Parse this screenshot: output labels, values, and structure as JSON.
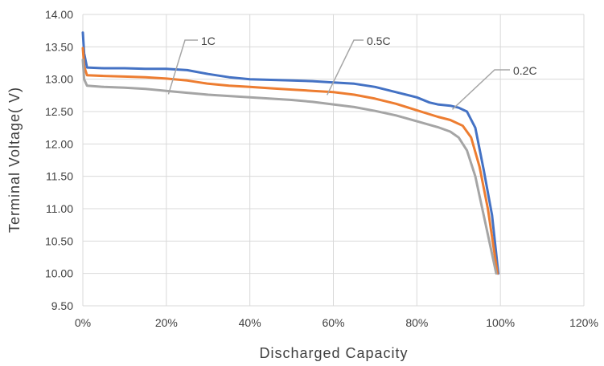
{
  "chart_data": {
    "type": "line",
    "title": "",
    "xlabel": "Discharged Capacity",
    "ylabel": "Terminal Voltage( V)",
    "xlim": [
      0,
      120
    ],
    "ylim": [
      9.5,
      14.0
    ],
    "x_ticks": [
      "0%",
      "20%",
      "40%",
      "60%",
      "80%",
      "100%",
      "120%"
    ],
    "y_ticks": [
      "9.50",
      "10.00",
      "10.50",
      "11.00",
      "11.50",
      "12.00",
      "12.50",
      "13.00",
      "13.50",
      "14.00"
    ],
    "grid": true,
    "legend": "none",
    "series": [
      {
        "name": "0.2C",
        "color": "#4472c4",
        "points": [
          [
            0,
            13.72
          ],
          [
            0.3,
            13.4
          ],
          [
            1,
            13.18
          ],
          [
            5,
            13.17
          ],
          [
            10,
            13.17
          ],
          [
            15,
            13.16
          ],
          [
            20,
            13.16
          ],
          [
            25,
            13.14
          ],
          [
            30,
            13.08
          ],
          [
            35,
            13.03
          ],
          [
            40,
            13.0
          ],
          [
            45,
            12.99
          ],
          [
            50,
            12.98
          ],
          [
            55,
            12.97
          ],
          [
            60,
            12.95
          ],
          [
            65,
            12.93
          ],
          [
            70,
            12.88
          ],
          [
            75,
            12.8
          ],
          [
            80,
            12.72
          ],
          [
            83,
            12.64
          ],
          [
            85,
            12.61
          ],
          [
            88,
            12.59
          ],
          [
            90,
            12.56
          ],
          [
            92,
            12.5
          ],
          [
            94,
            12.25
          ],
          [
            96,
            11.6
          ],
          [
            98,
            10.9
          ],
          [
            99.5,
            10.0
          ]
        ]
      },
      {
        "name": "0.5C",
        "color": "#ed7d31",
        "points": [
          [
            0,
            13.48
          ],
          [
            0.3,
            13.2
          ],
          [
            1,
            13.06
          ],
          [
            5,
            13.05
          ],
          [
            10,
            13.04
          ],
          [
            15,
            13.03
          ],
          [
            20,
            13.01
          ],
          [
            25,
            12.98
          ],
          [
            30,
            12.93
          ],
          [
            35,
            12.9
          ],
          [
            40,
            12.88
          ],
          [
            45,
            12.86
          ],
          [
            50,
            12.84
          ],
          [
            55,
            12.82
          ],
          [
            60,
            12.8
          ],
          [
            65,
            12.76
          ],
          [
            70,
            12.7
          ],
          [
            75,
            12.62
          ],
          [
            80,
            12.52
          ],
          [
            85,
            12.42
          ],
          [
            88,
            12.37
          ],
          [
            91,
            12.28
          ],
          [
            93,
            12.1
          ],
          [
            95,
            11.65
          ],
          [
            97,
            11.0
          ],
          [
            99.3,
            10.0
          ]
        ]
      },
      {
        "name": "1C",
        "color": "#a5a5a5",
        "points": [
          [
            0,
            13.3
          ],
          [
            0.3,
            13.0
          ],
          [
            1,
            12.9
          ],
          [
            5,
            12.88
          ],
          [
            10,
            12.87
          ],
          [
            15,
            12.85
          ],
          [
            20,
            12.82
          ],
          [
            25,
            12.79
          ],
          [
            30,
            12.76
          ],
          [
            35,
            12.74
          ],
          [
            40,
            12.72
          ],
          [
            45,
            12.7
          ],
          [
            50,
            12.68
          ],
          [
            55,
            12.65
          ],
          [
            60,
            12.61
          ],
          [
            65,
            12.57
          ],
          [
            70,
            12.51
          ],
          [
            75,
            12.44
          ],
          [
            80,
            12.35
          ],
          [
            85,
            12.26
          ],
          [
            88,
            12.19
          ],
          [
            90,
            12.1
          ],
          [
            92,
            11.9
          ],
          [
            94,
            11.5
          ],
          [
            96,
            10.9
          ],
          [
            98,
            10.3
          ],
          [
            99,
            10.0
          ]
        ]
      }
    ],
    "annotations": [
      {
        "text": "1C",
        "series": "1C"
      },
      {
        "text": "0.5C",
        "series": "0.5C"
      },
      {
        "text": "0.2C",
        "series": "0.2C"
      }
    ]
  }
}
